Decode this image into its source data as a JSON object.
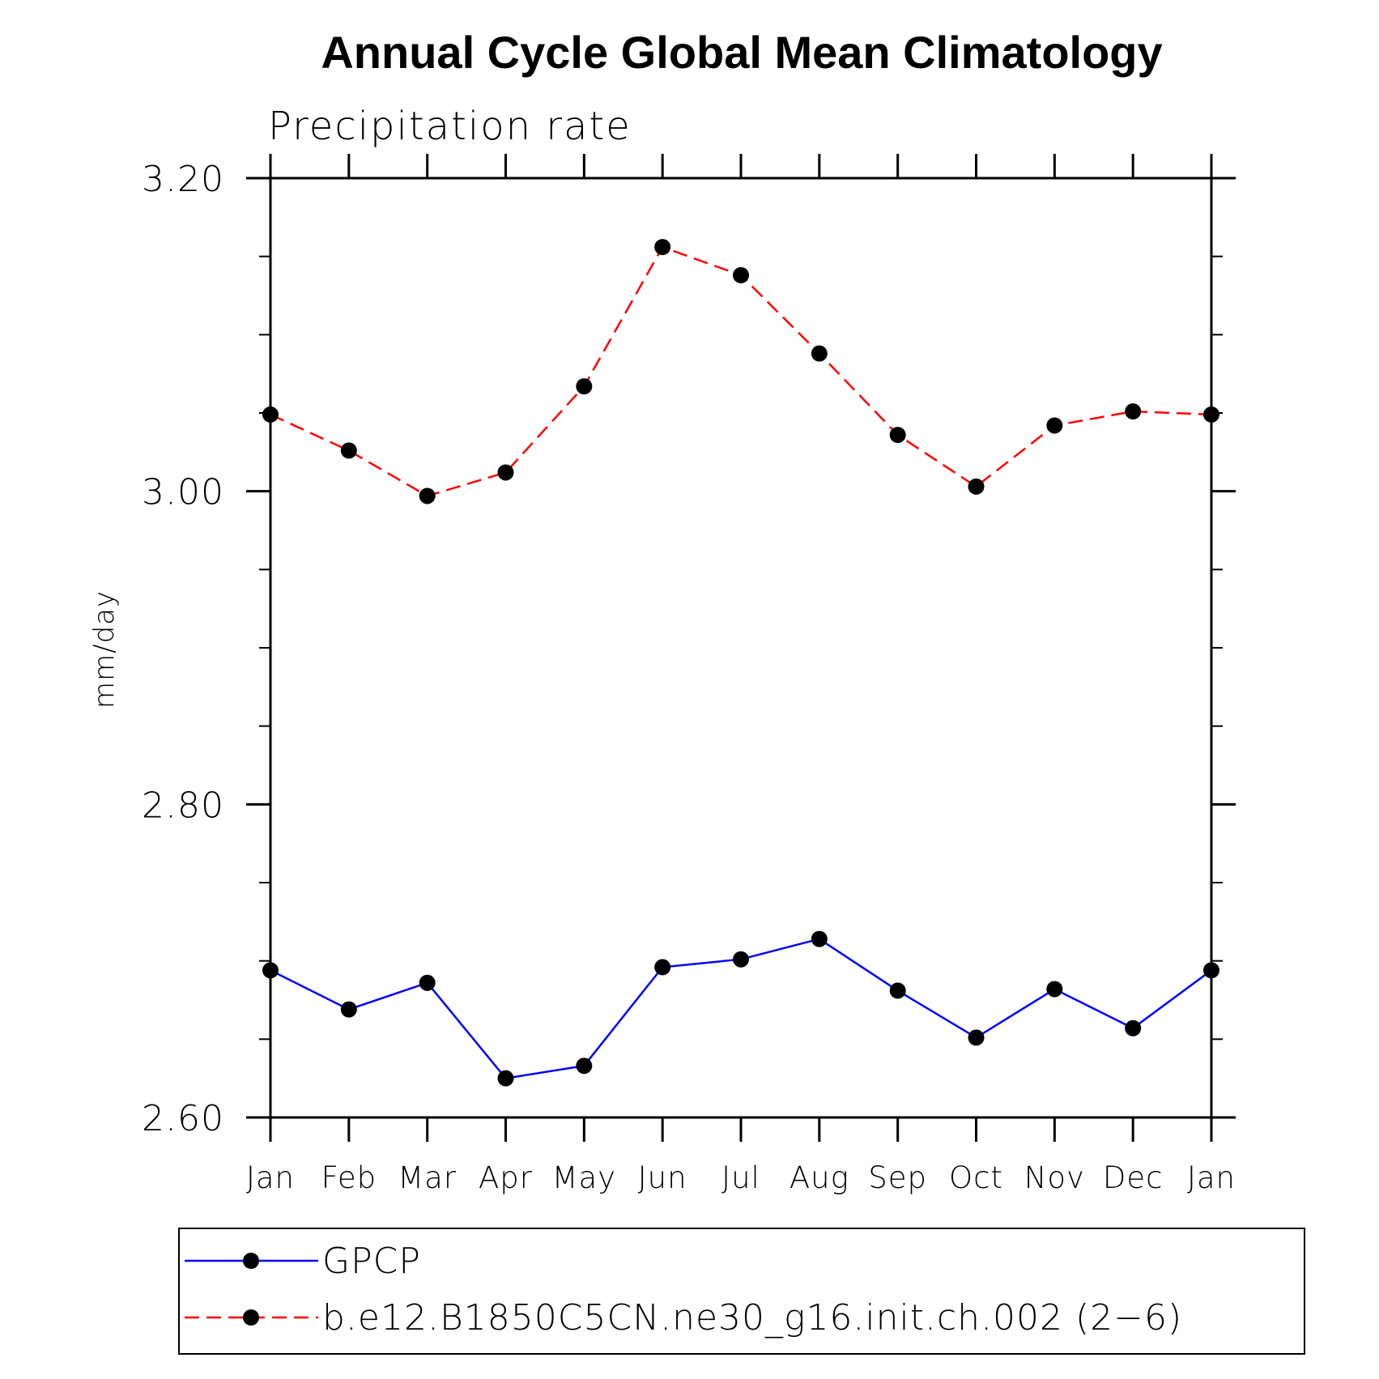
{
  "chart_data": {
    "type": "line",
    "title": "Annual Cycle Global Mean Climatology",
    "subtitle": "Precipitation rate",
    "xlabel": "",
    "ylabel": "mm/day",
    "categories": [
      "Jan",
      "Feb",
      "Mar",
      "Apr",
      "May",
      "Jun",
      "Jul",
      "Aug",
      "Sep",
      "Oct",
      "Nov",
      "Dec",
      "Jan"
    ],
    "ylim": [
      2.6,
      3.2
    ],
    "yticks_major": [
      2.6,
      2.8,
      3.0,
      3.2
    ],
    "ytick_labels": [
      "2.60",
      "2.80",
      "3.00",
      "3.20"
    ],
    "yticks_minor_step": 0.05,
    "grid": false,
    "legend_position": "bottom",
    "series": [
      {
        "name": "GPCP",
        "color": "#0000ff",
        "dash": "solid",
        "marker": "filled-circle",
        "values": [
          2.694,
          2.669,
          2.686,
          2.625,
          2.633,
          2.696,
          2.701,
          2.714,
          2.681,
          2.651,
          2.682,
          2.657,
          2.694
        ]
      },
      {
        "name": "b.e12.B1850C5CN.ne30_g16.init.ch.002 (2−6)",
        "color": "#ff0000",
        "dash": "dashed",
        "marker": "filled-circle",
        "values": [
          3.049,
          3.026,
          2.997,
          3.012,
          3.067,
          3.156,
          3.138,
          3.088,
          3.036,
          3.003,
          3.042,
          3.051,
          3.049
        ]
      }
    ]
  }
}
